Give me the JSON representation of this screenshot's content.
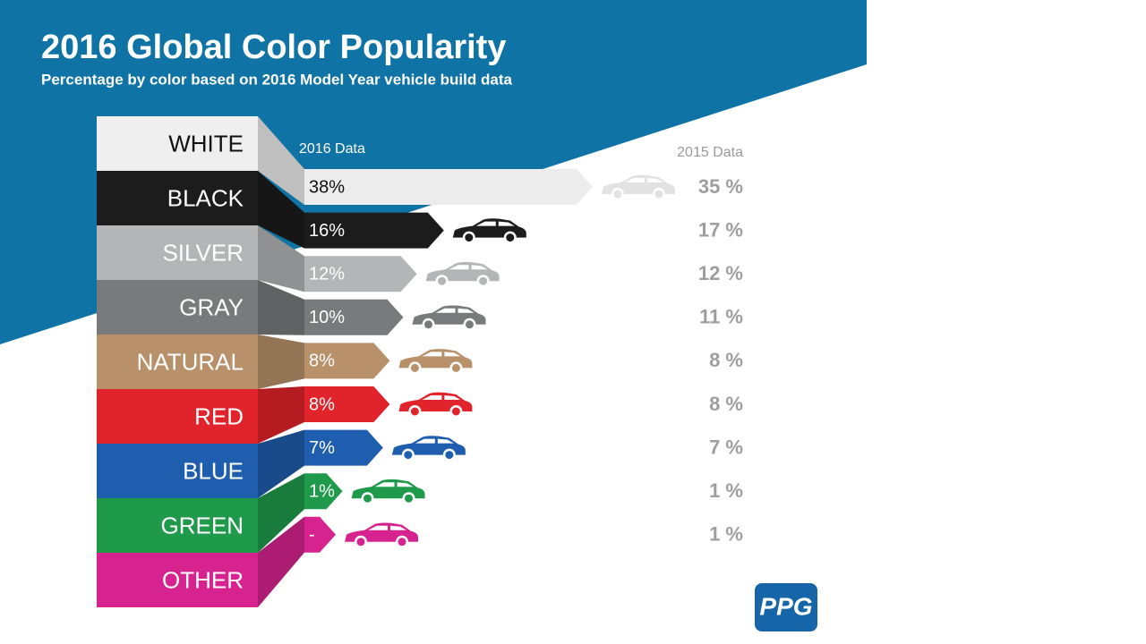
{
  "chart_data": {
    "type": "bar",
    "title": "2016 Global Color Popularity",
    "subtitle": "Percentage by color based on 2016 Model Year vehicle build data",
    "categories": [
      "WHITE",
      "BLACK",
      "SILVER",
      "GRAY",
      "NATURAL",
      "RED",
      "BLUE",
      "GREEN",
      "OTHER"
    ],
    "colors": [
      "#efefef",
      "#1c1c1c",
      "#b4b5b7",
      "#797a7c",
      "#b8916a",
      "#e1232b",
      "#1f5eae",
      "#1f9a4b",
      "#d6238f"
    ],
    "series": [
      {
        "name": "2016 Data",
        "values": [
          38,
          16,
          12,
          10,
          8,
          8,
          7,
          1,
          null
        ],
        "value_labels": [
          "38%",
          "16%",
          "12%",
          "10%",
          "8%",
          "8%",
          "7%",
          "1%",
          "-"
        ]
      },
      {
        "name": "2015 Data",
        "values": [
          35,
          17,
          12,
          11,
          8,
          8,
          7,
          1,
          1
        ],
        "value_labels": [
          "35 %",
          "17 %",
          "12 %",
          "11 %",
          "8 %",
          "8 %",
          "7 %",
          "1 %",
          "1 %"
        ]
      }
    ],
    "logo": "PPG"
  }
}
